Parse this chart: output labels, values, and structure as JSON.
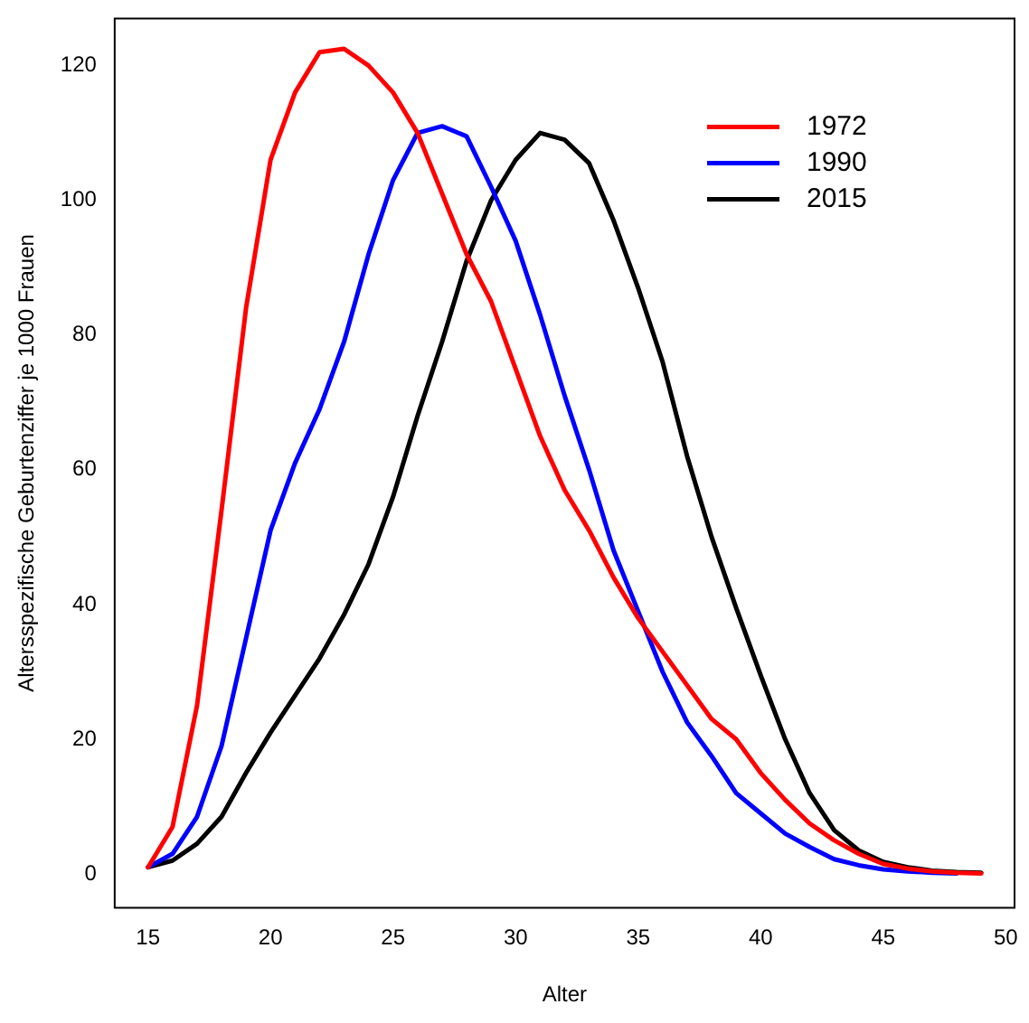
{
  "chart_data": {
    "type": "line",
    "xlabel": "Alter",
    "ylabel": "Altersspezifische Geburtenziffer je 1000 Frauen",
    "x": [
      15,
      16,
      17,
      18,
      19,
      20,
      21,
      22,
      23,
      24,
      25,
      26,
      27,
      28,
      29,
      30,
      31,
      32,
      33,
      34,
      35,
      36,
      37,
      38,
      39,
      40,
      41,
      42,
      43,
      44,
      45,
      46,
      47,
      48,
      49
    ],
    "series": [
      {
        "name": "1972",
        "color": "#ff0000",
        "values": [
          1,
          7,
          25,
          54,
          84,
          106,
          116,
          122,
          122.5,
          120,
          116,
          110,
          101,
          92,
          85,
          75,
          65,
          57,
          51,
          44,
          38,
          33,
          28,
          23,
          20,
          15,
          11,
          7.5,
          5,
          3,
          1.5,
          0.8,
          0.4,
          0.2,
          0.1
        ]
      },
      {
        "name": "1990",
        "color": "#0000ff",
        "values": [
          1,
          3,
          8.5,
          19,
          35,
          51,
          61,
          69,
          79,
          92,
          103,
          110,
          111,
          109.5,
          102,
          94,
          83,
          71,
          60,
          48,
          39,
          30,
          22.5,
          17.5,
          12,
          9,
          6,
          4,
          2.2,
          1.3,
          0.7,
          0.4,
          0.2,
          0.1,
          null
        ]
      },
      {
        "name": "2015",
        "color": "#000000",
        "values": [
          1,
          2,
          4.5,
          8.5,
          15,
          21,
          26.5,
          32,
          38.5,
          46,
          56,
          68,
          79,
          91,
          100,
          106,
          110,
          109,
          105.5,
          97,
          87,
          76,
          62,
          50,
          39.5,
          29.5,
          20,
          12,
          6.5,
          3.5,
          1.8,
          1,
          0.5,
          0.3,
          0.2
        ]
      }
    ],
    "xlim": [
      13.64,
      50.36
    ],
    "ylim": [
      -5,
      127
    ],
    "xticks": [
      15,
      20,
      25,
      30,
      35,
      40,
      45,
      50
    ],
    "yticks": [
      0,
      20,
      40,
      60,
      80,
      100,
      120
    ],
    "grid": false,
    "legend": "top right",
    "marker": "none",
    "line_style": "solid"
  }
}
